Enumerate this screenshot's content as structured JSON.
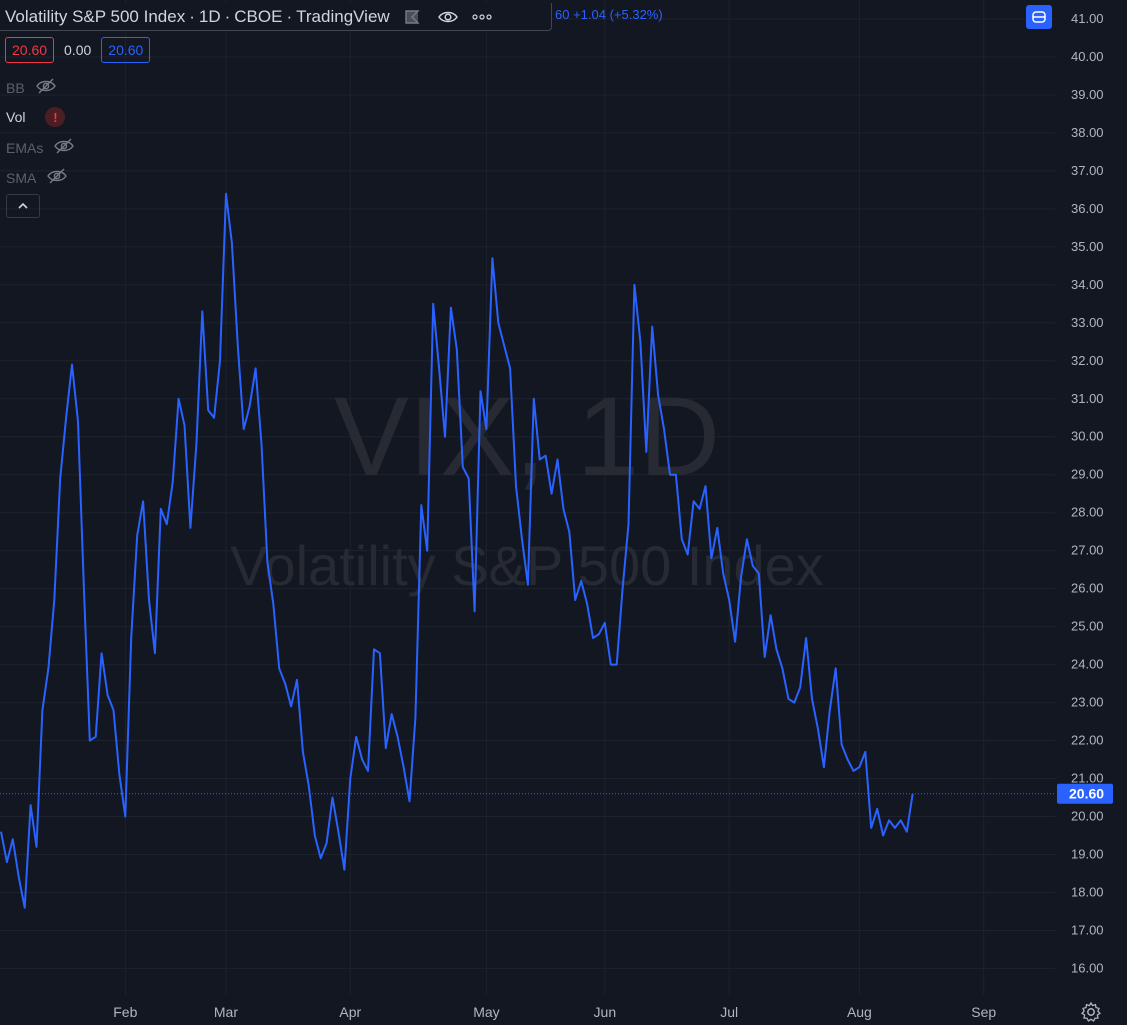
{
  "header": {
    "symbol_title": "Volatility S&P 500 Index",
    "sep1": "·",
    "interval": "1D",
    "sep2": "·",
    "exchange": "CBOE",
    "sep3": "·",
    "source": "TradingView",
    "ohlc_tail": "60  +1.04 (+5.32%)"
  },
  "values": {
    "box_red": "20.60",
    "plain": "0.00",
    "box_blue": "20.60"
  },
  "indicators": [
    {
      "name": "BB",
      "status_icon": "eye-hidden-icon"
    },
    {
      "name": "Vol",
      "status_icon": "error-icon",
      "status_glyph": "!"
    },
    {
      "name": "EMAs",
      "status_icon": "eye-hidden-icon"
    },
    {
      "name": "SMA",
      "status_icon": "eye-hidden-icon"
    }
  ],
  "watermark": {
    "symbol": "VIX, 1D",
    "description": "Volatility S&P 500 Index"
  },
  "colors": {
    "background": "#131722",
    "line": "#2962ff",
    "grid": "#1e222d",
    "text": "#b2b5be",
    "negative": "#f23645"
  },
  "chart_data": {
    "type": "line",
    "series": [
      {
        "values": [
          19.6,
          18.8,
          19.4,
          18.4,
          17.6,
          20.3,
          19.2,
          22.8,
          23.9,
          25.7,
          28.9,
          30.5,
          31.9,
          30.4,
          26.0,
          22.0,
          22.1,
          24.3,
          23.2,
          22.8,
          21.1,
          20.0,
          24.7,
          27.4,
          28.3,
          25.7,
          24.3,
          28.1,
          27.7,
          28.8,
          31.0,
          30.3,
          27.6,
          29.8,
          33.3,
          30.7,
          30.5,
          32.0,
          36.4,
          35.1,
          32.4,
          30.2,
          30.8,
          31.8,
          29.8,
          26.7,
          25.6,
          23.9,
          23.5,
          22.9,
          23.6,
          21.7,
          20.8,
          19.5,
          18.9,
          19.3,
          20.5,
          19.6,
          18.6,
          21.0,
          22.1,
          21.5,
          21.2,
          24.4,
          24.3,
          21.8,
          22.7,
          22.1,
          21.3,
          20.4,
          22.6,
          28.2,
          27.0,
          33.5,
          31.8,
          30.0,
          33.4,
          32.3,
          29.2,
          28.9,
          25.4,
          31.2,
          30.2,
          34.7,
          33.0,
          32.4,
          31.8,
          28.7,
          27.3,
          26.1,
          31.0,
          29.4,
          29.5,
          28.5,
          29.4,
          28.1,
          27.5,
          25.7,
          26.2,
          25.6,
          24.7,
          24.8,
          25.1,
          24.0,
          24.0,
          26.0,
          27.7,
          34.0,
          32.5,
          29.6,
          32.9,
          31.1,
          30.2,
          29.0,
          29.0,
          27.3,
          26.9,
          28.3,
          28.1,
          28.7,
          26.8,
          27.6,
          26.4,
          25.7,
          24.6,
          26.3,
          27.3,
          26.6,
          26.4,
          24.2,
          25.3,
          24.4,
          23.9,
          23.1,
          23.0,
          23.4,
          24.7,
          23.1,
          22.3,
          21.3,
          22.8,
          23.9,
          21.9,
          21.5,
          21.2,
          21.3,
          21.7,
          19.7,
          20.2,
          19.5,
          19.9,
          19.7,
          19.9,
          19.6,
          20.6
        ]
      }
    ],
    "x_tick_labels": [
      "Feb",
      "Mar",
      "Apr",
      "May",
      "Jun",
      "Jul",
      "Aug",
      "Sep"
    ],
    "x_tick_index": [
      21,
      38,
      59,
      82,
      102,
      123,
      145,
      166
    ],
    "y_tick_labels": [
      "16.00",
      "17.00",
      "18.00",
      "19.00",
      "20.00",
      "21.00",
      "22.00",
      "23.00",
      "24.00",
      "25.00",
      "26.00",
      "27.00",
      "28.00",
      "29.00",
      "30.00",
      "31.00",
      "32.00",
      "33.00",
      "34.00",
      "35.00",
      "36.00",
      "37.00",
      "38.00",
      "39.00",
      "40.00",
      "41.00"
    ],
    "ylim": [
      15.3,
      41.5
    ],
    "last_value_label": "20.60",
    "last_value": 20.6,
    "grid": true
  }
}
